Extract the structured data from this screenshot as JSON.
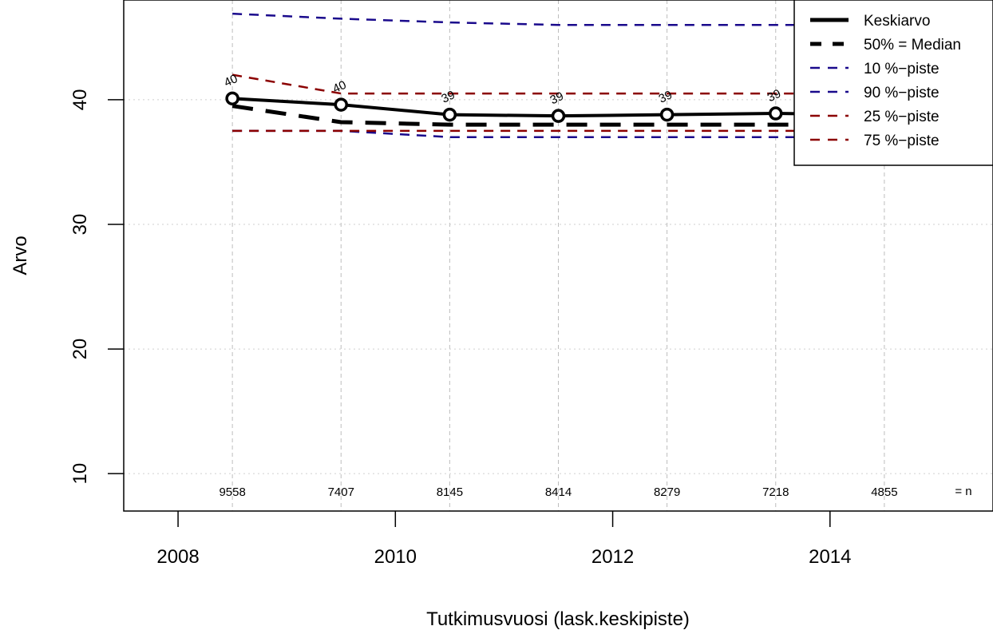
{
  "chart_data": {
    "type": "line",
    "xlabel": "Tutkimusvuosi (lask.keskipiste)",
    "ylabel": "Arvo",
    "xlim": [
      2007.5,
      2015.5
    ],
    "ylim": [
      7,
      48
    ],
    "x_ticks": [
      2008,
      2010,
      2012,
      2014
    ],
    "y_ticks": [
      10,
      20,
      30,
      40
    ],
    "grid": true,
    "legend_position": "top-right",
    "x": [
      2008.5,
      2009.5,
      2010.5,
      2011.5,
      2012.5,
      2013.5,
      2014.5
    ],
    "series": [
      {
        "name": "Keskiarvo",
        "color": "#000000",
        "style": "solid-markers",
        "values": [
          40.1,
          39.6,
          38.8,
          38.7,
          38.8,
          38.9,
          38.8
        ]
      },
      {
        "name": "50% = Median",
        "color": "#000000",
        "style": "dashed-thick",
        "values": [
          39.5,
          38.2,
          38.0,
          38.0,
          38.0,
          38.0,
          38.0
        ]
      },
      {
        "name": "10 %−piste",
        "color": "#1a0a8c",
        "style": "dashed",
        "values": [
          37.5,
          37.5,
          37.0,
          37.0,
          37.0,
          37.0,
          37.0
        ]
      },
      {
        "name": "90 %−piste",
        "color": "#1a0a8c",
        "style": "dashed",
        "values": [
          46.9,
          46.5,
          46.2,
          46.0,
          46.0,
          46.0,
          46.0
        ]
      },
      {
        "name": "25 %−piste",
        "color": "#8b0000",
        "style": "dashed",
        "values": [
          37.5,
          37.5,
          37.5,
          37.5,
          37.5,
          37.5,
          37.5
        ]
      },
      {
        "name": "75 %−piste",
        "color": "#8b0000",
        "style": "dashed",
        "values": [
          42.0,
          40.5,
          40.5,
          40.5,
          40.5,
          40.5,
          40.5
        ]
      }
    ],
    "point_labels": [
      "40",
      "40",
      "39",
      "39",
      "39",
      "39",
      "39"
    ],
    "n_values": [
      "9558",
      "7407",
      "8145",
      "8414",
      "8279",
      "7218",
      "4855"
    ],
    "n_label": "= n"
  }
}
